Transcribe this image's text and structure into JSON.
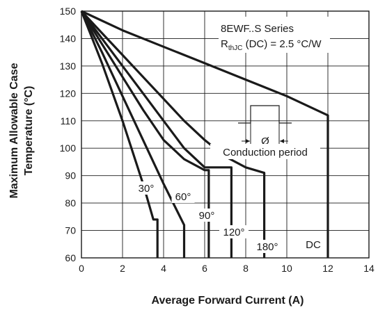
{
  "chart_data": {
    "type": "line",
    "xlabel": "Average Forward Current (A)",
    "ylabel_line1": "Maximum Allowable Case",
    "ylabel_line2": "Temperature (°C)",
    "xlim": [
      0,
      14
    ],
    "ylim": [
      60,
      150
    ],
    "xticks": [
      0,
      2,
      4,
      6,
      8,
      10,
      12,
      14
    ],
    "yticks": [
      60,
      70,
      80,
      90,
      100,
      110,
      120,
      130,
      140,
      150
    ],
    "grid": true,
    "series": [
      {
        "name": "30°",
        "x": [
          0,
          1,
          2,
          3,
          3.5,
          3.7,
          3.7
        ],
        "y": [
          150,
          131,
          110,
          87,
          74,
          74,
          60
        ]
      },
      {
        "name": "60°",
        "x": [
          0,
          1,
          2,
          3,
          4,
          5,
          5
        ],
        "y": [
          150,
          135,
          119,
          103,
          87,
          72,
          60
        ]
      },
      {
        "name": "90°",
        "x": [
          0,
          1,
          2,
          3,
          4,
          5,
          6,
          6.2,
          6.2
        ],
        "y": [
          150,
          138,
          126,
          114,
          103,
          96,
          92,
          92,
          60
        ]
      },
      {
        "name": "120°",
        "x": [
          0,
          1,
          2,
          3,
          4,
          5,
          6,
          7,
          7.3,
          7.3
        ],
        "y": [
          150,
          140,
          130,
          120,
          110,
          100,
          93,
          93,
          93,
          60
        ]
      },
      {
        "name": "180°",
        "x": [
          0,
          1,
          2,
          3,
          4,
          5,
          6,
          7,
          8,
          8.9,
          8.9
        ],
        "y": [
          150,
          142,
          134,
          126,
          118,
          110,
          103,
          97,
          93,
          91,
          60
        ]
      },
      {
        "name": "DC",
        "x": [
          0,
          2,
          4,
          6,
          8,
          10,
          12,
          12
        ],
        "y": [
          150,
          143,
          137,
          131,
          125,
          119,
          112,
          60
        ]
      }
    ],
    "annotations": {
      "series_title": "8EWF..S Series",
      "rth_main": "R",
      "rth_sub": "thJC",
      "rth_rest": " (DC) = 2.5 °C/W",
      "conduction_label": "Conduction period",
      "phi_symbol": "Ø"
    }
  }
}
